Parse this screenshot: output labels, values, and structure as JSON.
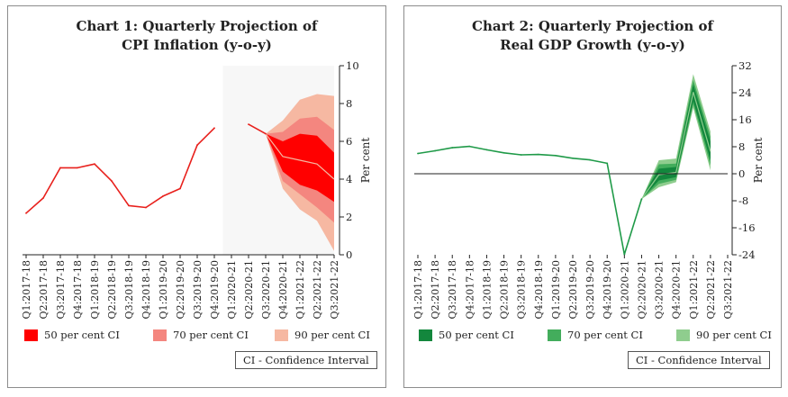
{
  "chart_data": [
    {
      "type": "line",
      "title_line1": "Chart 1: Quarterly Projection of",
      "title_line2": "CPI Inflation (y-o-y)",
      "ylabel": "Per cent",
      "ylim": [
        0,
        10
      ],
      "yticks": [
        0,
        2,
        4,
        6,
        8,
        10
      ],
      "categories": [
        "Q1:2017-18",
        "Q2:2017-18",
        "Q3:2017-18",
        "Q4:2017-18",
        "Q1:2018-19",
        "Q2:2018-19",
        "Q3:2018-19",
        "Q4:2018-19",
        "Q1:2019-20",
        "Q2:2019-20",
        "Q3:2019-20",
        "Q4:2019-20",
        "Q1:2020-21",
        "Q2:2020-21",
        "Q3:2020-21",
        "Q4:2020-21",
        "Q1:2021-22",
        "Q2:2021-22",
        "Q3:2021-22"
      ],
      "actual": [
        2.2,
        3.0,
        4.6,
        4.6,
        4.8,
        3.9,
        2.6,
        2.5,
        3.1,
        3.5,
        5.8,
        6.7,
        null,
        6.9,
        6.4,
        null,
        null,
        null,
        null
      ],
      "projection_start_index": 14,
      "projection": {
        "central": [
          6.4,
          5.2,
          5.0,
          4.8,
          4.0
        ],
        "ci50": {
          "lower": [
            6.4,
            4.4,
            3.7,
            3.4,
            2.8
          ],
          "upper": [
            6.4,
            6.0,
            6.4,
            6.3,
            5.4
          ]
        },
        "ci70": {
          "lower": [
            6.4,
            3.9,
            3.2,
            2.5,
            1.7
          ],
          "upper": [
            6.4,
            6.5,
            7.2,
            7.3,
            6.6
          ]
        },
        "ci90": {
          "lower": [
            6.4,
            3.5,
            2.4,
            1.8,
            0.2
          ],
          "upper": [
            6.4,
            7.1,
            8.2,
            8.5,
            8.4
          ]
        }
      },
      "shaded_band_start_index": 12,
      "colors": {
        "line": "#e8201c",
        "ci50": "#ff0000",
        "ci70": "#f4867f",
        "ci90": "#f6b8a2",
        "central": "#f6b8a2"
      },
      "legend": [
        "50 per cent CI",
        "70 per cent CI",
        "90 per cent CI"
      ],
      "note": "CI - Confidence Interval"
    },
    {
      "type": "line",
      "title_line1": "Chart 2: Quarterly Projection of",
      "title_line2": "Real GDP Growth (y-o-y)",
      "ylabel": "Per cent",
      "ylim": [
        -24,
        32
      ],
      "yticks": [
        -24,
        -16,
        -8,
        0,
        8,
        16,
        24,
        32
      ],
      "categories": [
        "Q1:2017-18",
        "Q2:2017-18",
        "Q3:2017-18",
        "Q4:2017-18",
        "Q1:2018-19",
        "Q2:2018-19",
        "Q3:2018-19",
        "Q4:2018-19",
        "Q1:2019-20",
        "Q2:2019-20",
        "Q3:2019-20",
        "Q4:2019-20",
        "Q1:2020-21",
        "Q2:2020-21",
        "Q3:2020-21",
        "Q4:2020-21",
        "Q1:2021-22",
        "Q2:2021-22",
        "Q3:2021-22"
      ],
      "actual": [
        6.0,
        6.8,
        7.7,
        8.1,
        7.1,
        6.2,
        5.6,
        5.7,
        5.4,
        4.6,
        4.1,
        3.1,
        -23.9,
        -7.5,
        null,
        null,
        null,
        null,
        null
      ],
      "projection_start_index": 13,
      "projection": {
        "central": [
          -7.5,
          -0.3,
          0.4,
          24.2,
          6.6
        ],
        "ci50": {
          "lower": [
            -7.5,
            -2.0,
            -1.0,
            21.5,
            4.0
          ],
          "upper": [
            -7.5,
            1.5,
            2.0,
            26.5,
            9.5
          ]
        },
        "ci70": {
          "lower": [
            -7.5,
            -3.0,
            -1.8,
            20.5,
            2.5
          ],
          "upper": [
            -7.5,
            2.8,
            3.0,
            27.8,
            11.0
          ]
        },
        "ci90": {
          "lower": [
            -7.5,
            -4.0,
            -2.5,
            19.5,
            1.0
          ],
          "upper": [
            -7.5,
            4.0,
            4.5,
            29.5,
            12.5
          ]
        }
      },
      "colors": {
        "line": "#1f9a48",
        "ci50": "#13873d",
        "ci70": "#43ad5c",
        "ci90": "#8fcd8e",
        "central": "#8fcd8e"
      },
      "legend": [
        "50 per cent CI",
        "70 per cent CI",
        "90 per cent CI"
      ],
      "note": "CI - Confidence Interval"
    }
  ]
}
